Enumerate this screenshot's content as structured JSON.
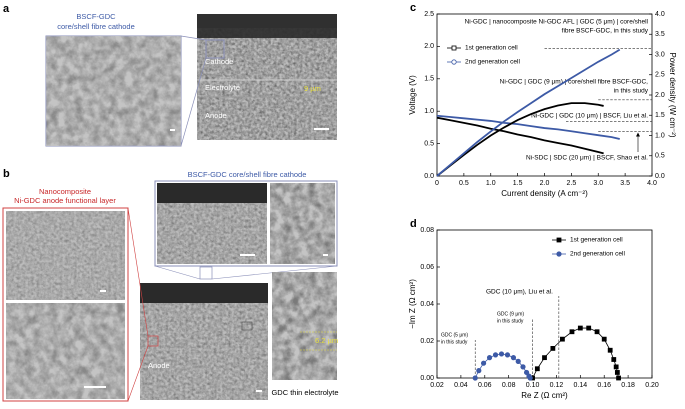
{
  "panel_a": {
    "label": "a",
    "title": [
      "BSCF-GDC",
      "core/shell fibre cathode"
    ],
    "layers": [
      "Cathode",
      "Electrolyte",
      "Anode"
    ],
    "thickness": "9 µm"
  },
  "panel_b": {
    "label": "b",
    "cathode_title": "BSCF-GDC core/shell fibre cathode",
    "afl_title": [
      "Nanocomposite",
      "Ni-GDC anode functional layer"
    ],
    "anode": "Anode",
    "thickness": "6.2 µm",
    "electrolyte": "GDC thin electrolyte"
  },
  "chart_data": [
    {
      "type": "line",
      "label": "c",
      "xlabel": "Current density (A cm⁻²)",
      "ylabel": "Voltage (V)",
      "y2label": "Power density (W cm⁻²)",
      "xlim": [
        0,
        4
      ],
      "xticks": [
        0,
        0.5,
        {
          "value": 1,
          "label": "1.0"
        },
        1.5,
        {
          "value": 2,
          "label": "2.0"
        },
        2.5,
        {
          "value": 3,
          "label": "3.0"
        },
        3.5,
        {
          "value": 4,
          "label": "4.0"
        }
      ],
      "ylim": [
        0,
        2.5
      ],
      "yticks": [
        {
          "value": 0,
          "label": "0.0"
        },
        0.5,
        {
          "value": 1,
          "label": "1.0"
        },
        1.5,
        {
          "value": 2,
          "label": "2.0"
        },
        2.5
      ],
      "y2lim": [
        0,
        4
      ],
      "y2ticks": [
        {
          "value": 0,
          "label": "0.0"
        },
        0.5,
        {
          "value": 1,
          "label": "1.0"
        },
        1.5,
        {
          "value": 2,
          "label": "2.0"
        },
        2.5,
        {
          "value": 3,
          "label": "3.0"
        },
        3.5,
        {
          "value": 4,
          "label": "4.0"
        }
      ],
      "legend": "upper left",
      "markers": false,
      "marker_style": "open",
      "series": [
        {
          "name": "1st generation cell",
          "color": "#000000",
          "marker": "square",
          "x": [
            0,
            0.25,
            0.5,
            0.75,
            1,
            1.25,
            1.5,
            1.75,
            2,
            2.25,
            2.5,
            2.75,
            3,
            3.1
          ],
          "values": [
            0.9,
            0.86,
            0.82,
            0.78,
            0.73,
            0.69,
            0.64,
            0.6,
            0.55,
            0.51,
            0.47,
            0.42,
            0.37,
            0.35
          ]
        },
        {
          "name": "2nd generation cell",
          "color": "#3d5aa6",
          "marker": "circle",
          "x": [
            0,
            0.25,
            0.5,
            0.75,
            1,
            1.25,
            1.5,
            1.75,
            2,
            2.25,
            2.5,
            2.75,
            3,
            3.25,
            3.4
          ],
          "values": [
            0.93,
            0.91,
            0.89,
            0.87,
            0.85,
            0.82,
            0.8,
            0.77,
            0.74,
            0.72,
            0.69,
            0.66,
            0.63,
            0.6,
            0.57
          ]
        },
        {
          "color": "#000000",
          "axis": "y2",
          "x": [
            0,
            0.25,
            0.5,
            0.75,
            1,
            1.25,
            1.5,
            1.75,
            2,
            2.25,
            2.5,
            2.75,
            3,
            3.1
          ],
          "values": [
            0,
            0.26,
            0.52,
            0.77,
            1,
            1.2,
            1.38,
            1.53,
            1.65,
            1.74,
            1.8,
            1.8,
            1.76,
            1.73
          ]
        },
        {
          "color": "#3d5aa6",
          "axis": "y2",
          "x": [
            0,
            0.25,
            0.5,
            0.75,
            1,
            1.25,
            1.5,
            1.75,
            2,
            2.25,
            2.5,
            2.75,
            3,
            3.25,
            3.4
          ],
          "values": [
            0,
            0.28,
            0.56,
            0.84,
            1.1,
            1.35,
            1.58,
            1.8,
            2.02,
            2.22,
            2.42,
            2.62,
            2.82,
            3,
            3.12
          ]
        }
      ],
      "reference_lines": [
        {
          "y2": 3.15,
          "label": [
            "Ni-GDC | nanocomposite Ni-GDC AFL | GDC (5 μm) | core/shell",
            "fibre BSCF-GDC, in this study"
          ]
        },
        {
          "y2": 1.88,
          "label": [
            "Ni-GDC | GDC (9 μm) | core/shell fibre BSCF-GDC,",
            "in this study"
          ]
        },
        {
          "y2": 1.35,
          "label": [
            "Ni-GDC | GDC (10 μm) | BSCF, Liu et al."
          ]
        },
        {
          "y2": 1.1,
          "label": [
            "Ni-SDC | SDC (20 μm) | BSCF, Shao et al."
          ]
        }
      ]
    },
    {
      "type": "line",
      "label": "d",
      "xlabel": "Re Z (Ω cm²)",
      "ylabel": "−Im Z (Ω cm²)",
      "xlim": [
        0.02,
        0.2
      ],
      "xticks": [
        0.02,
        0.04,
        0.06,
        0.08,
        {
          "value": 0.1,
          "label": "0.10"
        },
        0.12,
        0.14,
        0.16,
        0.18,
        {
          "value": 0.2,
          "label": "0.20"
        }
      ],
      "ylim": [
        0,
        0.08
      ],
      "yticks": [
        {
          "value": 0,
          "label": "0.00"
        },
        0.02,
        0.04,
        0.06,
        0.08
      ],
      "legend": "upper right",
      "markers": true,
      "marker_style": "filled",
      "series": [
        {
          "name": "1st generation cell",
          "color": "#000000",
          "marker": "square",
          "x": [
            0.1,
            0.104,
            0.11,
            0.117,
            0.125,
            0.133,
            0.14,
            0.147,
            0.154,
            0.16,
            0.165,
            0.168,
            0.17,
            0.171,
            0.172
          ],
          "values": [
            0,
            0.005,
            0.011,
            0.016,
            0.021,
            0.025,
            0.027,
            0.027,
            0.025,
            0.021,
            0.015,
            0.01,
            0.006,
            0.003,
            0
          ]
        },
        {
          "name": "2nd generation cell",
          "color": "#3d5aa6",
          "marker": "circle",
          "x": [
            0.052,
            0.055,
            0.059,
            0.064,
            0.069,
            0.074,
            0.079,
            0.084,
            0.088,
            0.092,
            0.095,
            0.097,
            0.098
          ],
          "values": [
            0,
            0.004,
            0.008,
            0.011,
            0.0125,
            0.013,
            0.0125,
            0.011,
            0.009,
            0.006,
            0.003,
            0.001,
            0
          ]
        }
      ],
      "reference_lines": [
        {
          "x": 0.052,
          "label": [
            "GDC (5 μm)",
            "in this study"
          ]
        },
        {
          "x": 0.1,
          "label": [
            "GDC (9 μm)",
            "in this study"
          ]
        },
        {
          "x": 0.122,
          "label": [
            "GDC (10 μm), Liu et al."
          ]
        }
      ]
    }
  ]
}
